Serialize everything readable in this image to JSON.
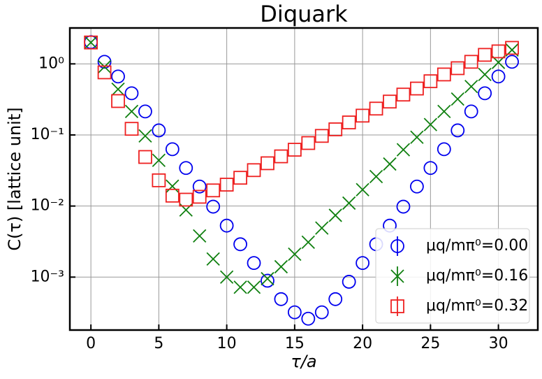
{
  "chart_data": {
    "type": "scatter",
    "title": "Diquark",
    "x_label": "τ/a",
    "y_label": "C(τ) [lattice unit]",
    "log_y": true,
    "grid": true,
    "legend": "lower right",
    "xlim": [
      -1.55,
      32.9
    ],
    "xticks": [
      0,
      5,
      10,
      15,
      20,
      25,
      30
    ],
    "ylim": [
      0.00018,
      3.2
    ],
    "yticks": [
      {
        "value": 0.001,
        "label": "10⁻³"
      },
      {
        "value": 0.01,
        "label": "10⁻²"
      },
      {
        "value": 0.1,
        "label": "10⁻¹"
      },
      {
        "value": 1,
        "label": "10⁰"
      }
    ],
    "x": [
      0,
      1,
      2,
      3,
      4,
      5,
      6,
      7,
      8,
      9,
      10,
      11,
      12,
      13,
      14,
      15,
      16,
      17,
      18,
      19,
      20,
      21,
      22,
      23,
      24,
      25,
      26,
      27,
      28,
      29,
      30,
      31
    ],
    "series": [
      {
        "name": "μq/mπ⁰=0.00",
        "color": "#0000ee",
        "marker": "circle",
        "values": [
          2.02,
          1.07,
          0.665,
          0.386,
          0.214,
          0.116,
          0.063,
          0.0343,
          0.0188,
          0.0098,
          0.0053,
          0.0029,
          0.00158,
          0.00089,
          0.00049,
          0.00032,
          0.00026,
          0.00032,
          0.00049,
          0.00086,
          0.00158,
          0.0029,
          0.0053,
          0.0098,
          0.0188,
          0.0343,
          0.063,
          0.116,
          0.214,
          0.386,
          0.665,
          1.07
        ]
      },
      {
        "name": "μq/mπ⁰=0.16",
        "color": "#108010",
        "marker": "x",
        "values": [
          2.0,
          0.91,
          0.44,
          0.214,
          0.097,
          0.044,
          0.019,
          0.0088,
          0.0038,
          0.0018,
          0.001,
          0.00072,
          0.00072,
          0.00095,
          0.0014,
          0.0021,
          0.0031,
          0.0049,
          0.0074,
          0.011,
          0.017,
          0.026,
          0.039,
          0.062,
          0.093,
          0.14,
          0.214,
          0.32,
          0.48,
          0.71,
          1.05,
          1.57
        ]
      },
      {
        "name": "μq/mπ⁰=0.32",
        "color": "#ee2020",
        "marker": "square",
        "values": [
          2.0,
          0.76,
          0.3,
          0.122,
          0.049,
          0.023,
          0.014,
          0.0123,
          0.0135,
          0.0166,
          0.02,
          0.025,
          0.032,
          0.04,
          0.05,
          0.062,
          0.077,
          0.097,
          0.12,
          0.15,
          0.187,
          0.235,
          0.295,
          0.37,
          0.45,
          0.57,
          0.71,
          0.87,
          1.07,
          1.34,
          1.5,
          1.68
        ]
      }
    ]
  }
}
